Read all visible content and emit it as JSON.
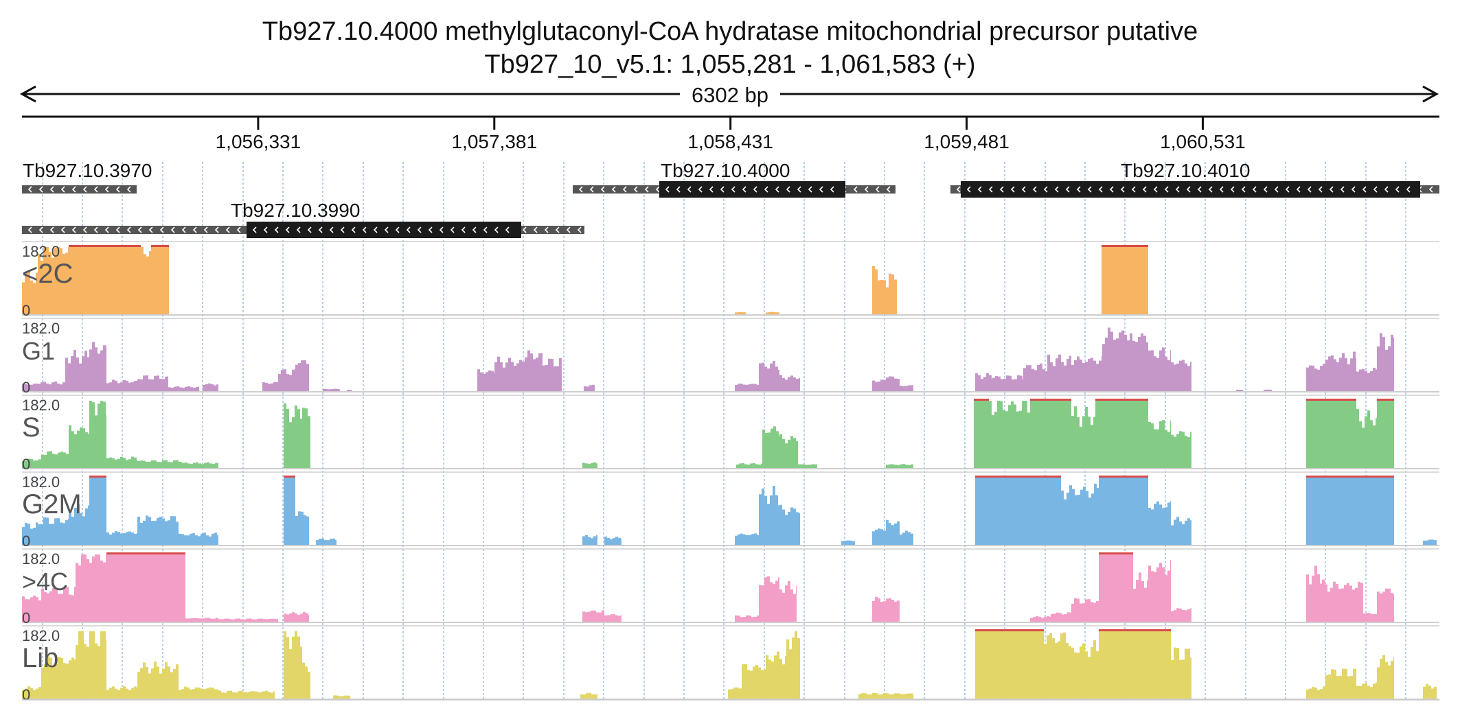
{
  "header": {
    "title": "Tb927.10.4000  methylglutaconyl-CoA hydratase  mitochondrial precursor  putative",
    "locus": "Tb927_10_v5.1: 1,055,281 - 1,061,583 (+)",
    "span": "6302 bp"
  },
  "region": {
    "start": 1055281,
    "end": 1061583
  },
  "ruler": {
    "ticks": [
      "1,056,331",
      "1,057,381",
      "1,058,431",
      "1,059,481",
      "1,060,531"
    ]
  },
  "genes": [
    {
      "label": "Tb927.10.3970"
    },
    {
      "label": "Tb927.10.3990"
    },
    {
      "label": "Tb927.10.4000"
    },
    {
      "label": "Tb927.10.4010"
    }
  ],
  "tracks": [
    {
      "label": "<2C",
      "max": "182.0",
      "min": "0",
      "color": "#f7b462"
    },
    {
      "label": "G1",
      "max": "182.0",
      "min": "0",
      "color": "#c597c9"
    },
    {
      "label": "S",
      "max": "182.0",
      "min": "0",
      "color": "#84cc86"
    },
    {
      "label": "G2M",
      "max": "182.0",
      "min": "0",
      "color": "#7ab6e3"
    },
    {
      "label": ">4C",
      "max": "182.0",
      "min": "0",
      "color": "#f29ec7"
    },
    {
      "label": "Lib",
      "max": "182.0",
      "min": "0",
      "color": "#e1d667"
    }
  ],
  "colors": {
    "clip": "#d94a4a",
    "gene_utr": "#555555",
    "gene_cds": "#1b1b1b",
    "grid": "#8fb5de"
  },
  "icons": {
    "ruler_arrows": "double-arrow-icon",
    "strand": "minus-strand-chevron-icon"
  }
}
